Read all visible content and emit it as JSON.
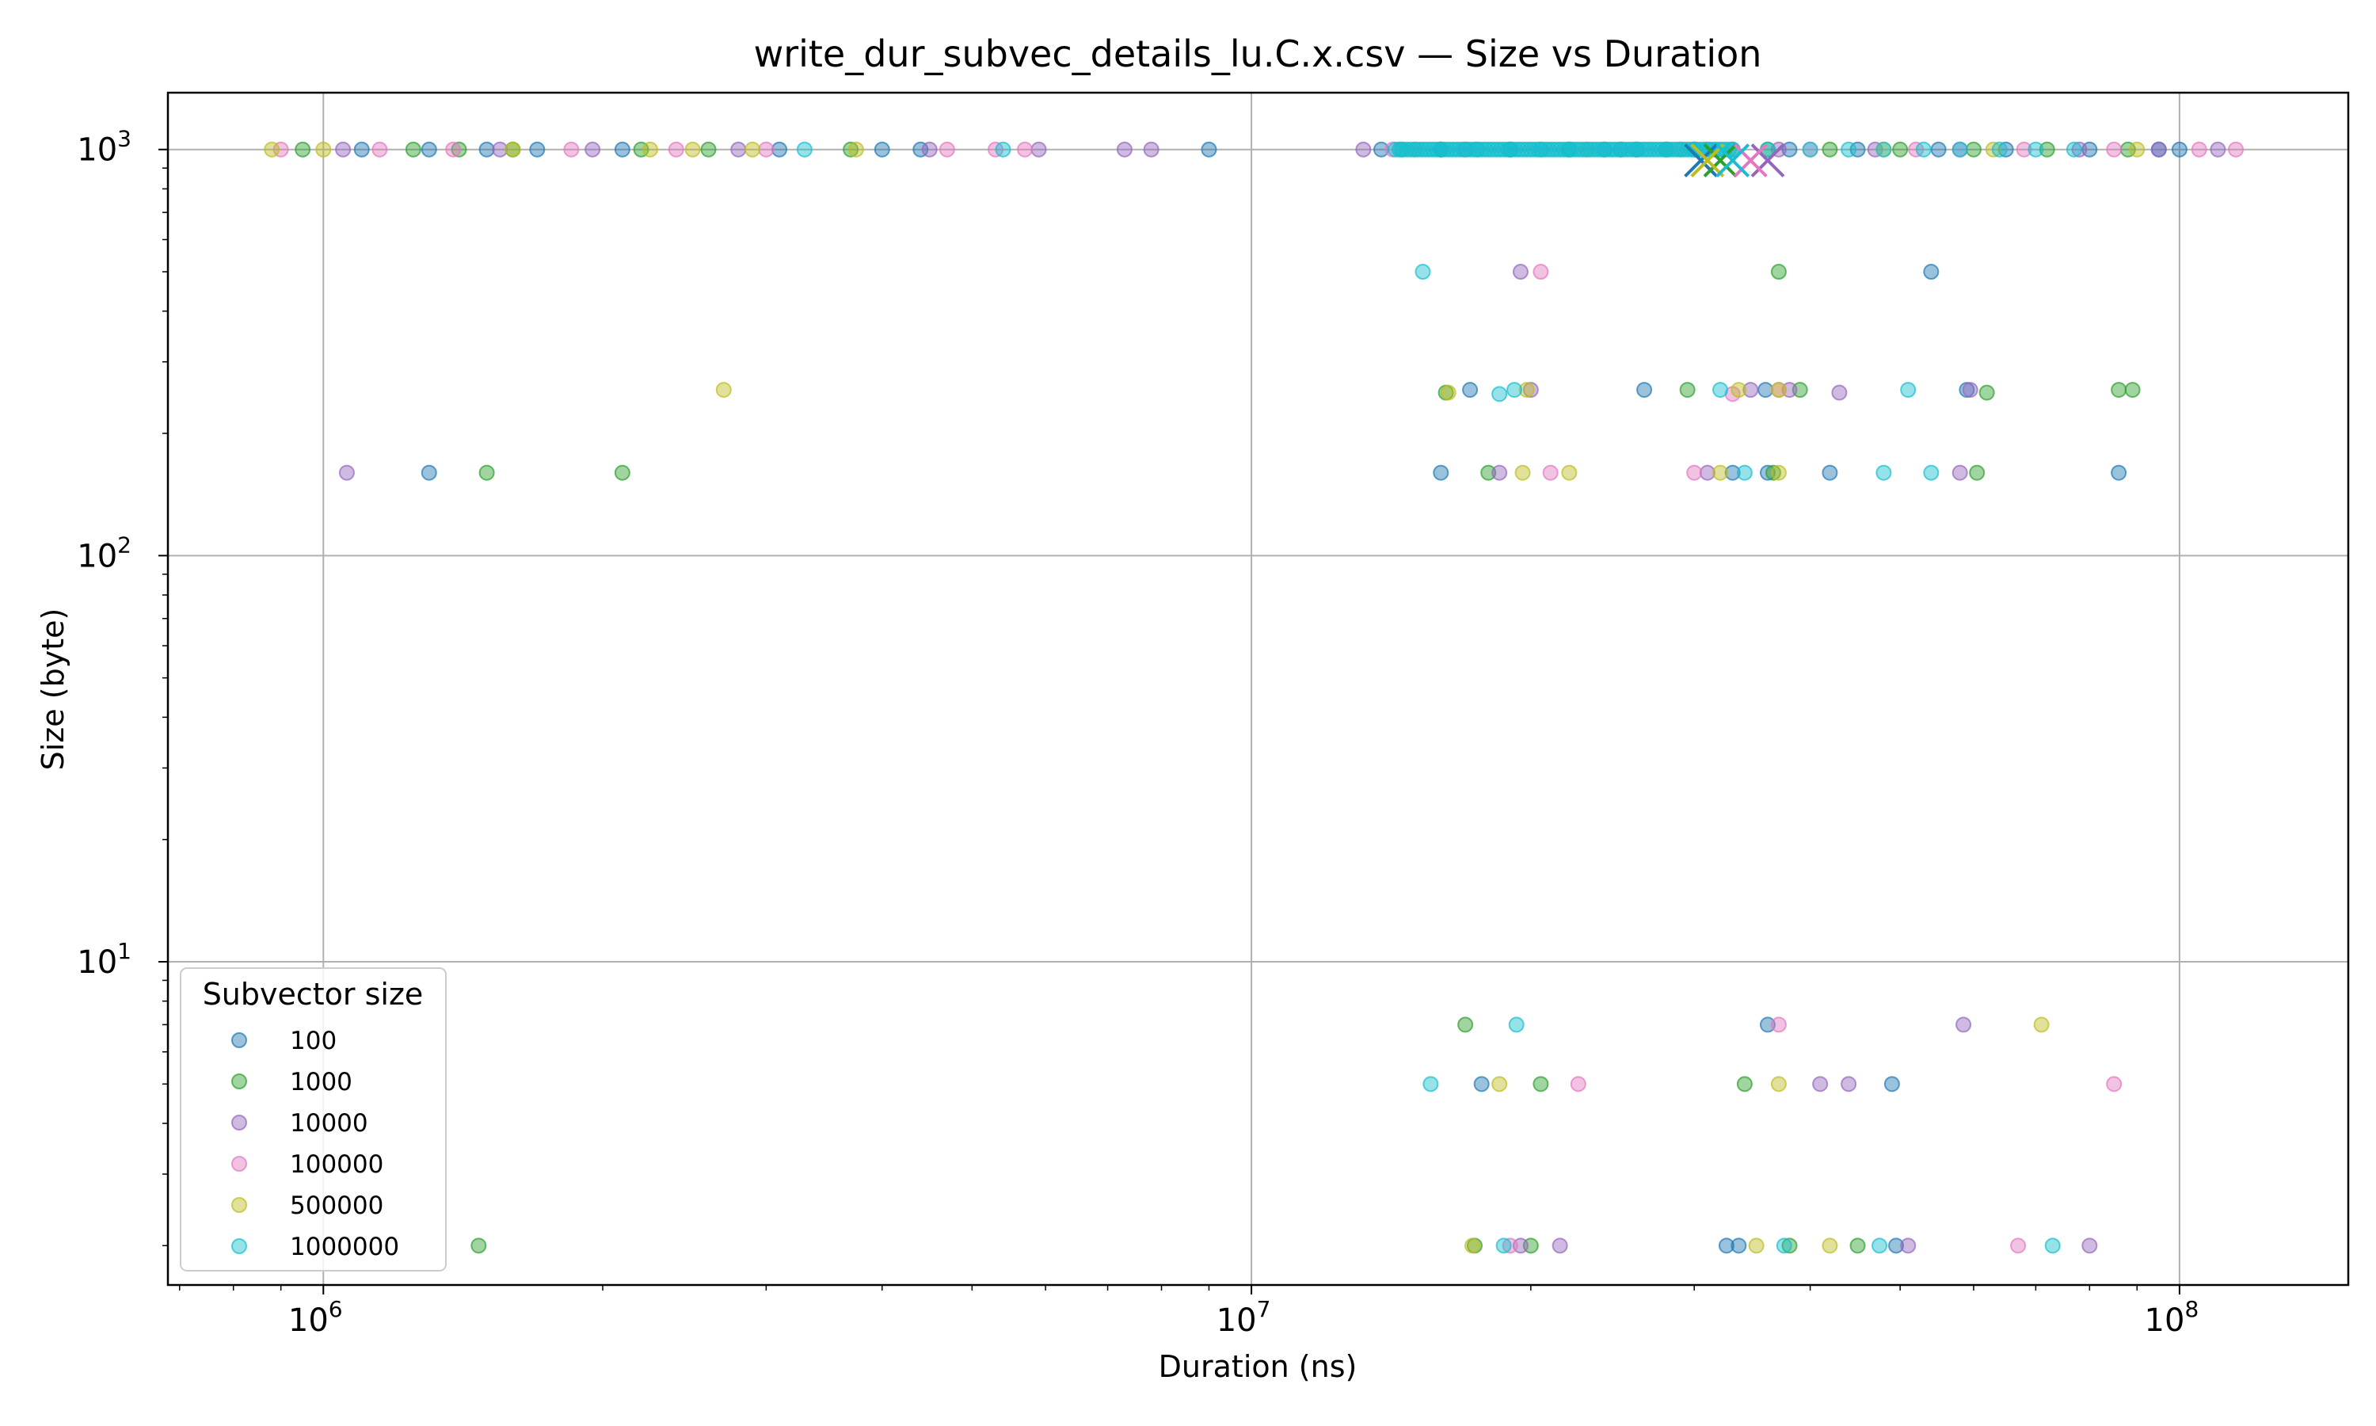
{
  "chart_data": {
    "type": "scatter",
    "title": "write_dur_subvec_details_lu.C.x.csv — Size vs Duration",
    "xlabel": "Duration (ns)",
    "ylabel": "Size (byte)",
    "xscale": "log",
    "yscale": "log",
    "xlim": [
      680000,
      152000000
    ],
    "ylim": [
      1.6,
      1380
    ],
    "grid": true,
    "x_ticks": [
      {
        "value": 1000000,
        "base": "10",
        "exp": "6"
      },
      {
        "value": 10000000,
        "base": "10",
        "exp": "7"
      },
      {
        "value": 100000000,
        "base": "10",
        "exp": "8"
      }
    ],
    "y_ticks": [
      {
        "value": 10,
        "base": "10",
        "exp": "1"
      },
      {
        "value": 100,
        "base": "10",
        "exp": "2"
      },
      {
        "value": 1000,
        "base": "10",
        "exp": "3"
      }
    ],
    "legend": {
      "title": "Subvector size",
      "position": "lower-left"
    },
    "series": [
      {
        "name": "100",
        "color": "#1f77b4",
        "points": [
          [
            1100000,
            1000
          ],
          [
            1300000,
            1000
          ],
          [
            1500000,
            1000
          ],
          [
            1700000,
            1000
          ],
          [
            2100000,
            1000
          ],
          [
            3100000,
            1000
          ],
          [
            4000000,
            1000
          ],
          [
            4400000,
            1000
          ],
          [
            9000000,
            1000
          ],
          [
            13800000,
            1000
          ],
          [
            16000000,
            1000
          ],
          [
            19000000,
            1000
          ],
          [
            25000000,
            1000
          ],
          [
            30000000,
            1000
          ],
          [
            38000000,
            1000
          ],
          [
            45000000,
            1000
          ],
          [
            55000000,
            1000
          ],
          [
            65000000,
            1000
          ],
          [
            80000000,
            1000
          ],
          [
            95000000,
            1000
          ],
          [
            100000000,
            1000
          ],
          [
            54000000,
            500
          ],
          [
            17200000,
            256
          ],
          [
            26500000,
            256
          ],
          [
            35800000,
            256
          ],
          [
            59000000,
            256
          ],
          [
            1300000,
            160
          ],
          [
            16000000,
            160
          ],
          [
            33000000,
            160
          ],
          [
            36000000,
            160
          ],
          [
            42000000,
            160
          ],
          [
            86000000,
            160
          ],
          [
            36000000,
            7
          ],
          [
            17700000,
            5
          ],
          [
            49000000,
            5
          ],
          [
            32500000,
            2
          ],
          [
            33500000,
            2
          ],
          [
            49500000,
            2
          ]
        ],
        "mean": [
          30500000,
          940
        ]
      },
      {
        "name": "1000",
        "color": "#2ca02c",
        "points": [
          [
            950000,
            1000
          ],
          [
            1250000,
            1000
          ],
          [
            1400000,
            1000
          ],
          [
            1600000,
            1000
          ],
          [
            2200000,
            1000
          ],
          [
            2600000,
            1000
          ],
          [
            3700000,
            1000
          ],
          [
            16000000,
            1000
          ],
          [
            22000000,
            1000
          ],
          [
            28000000,
            1000
          ],
          [
            36000000,
            1000
          ],
          [
            42000000,
            1000
          ],
          [
            50000000,
            1000
          ],
          [
            60000000,
            1000
          ],
          [
            72000000,
            1000
          ],
          [
            88000000,
            1000
          ],
          [
            37000000,
            500
          ],
          [
            16200000,
            252
          ],
          [
            29500000,
            256
          ],
          [
            39000000,
            256
          ],
          [
            62000000,
            252
          ],
          [
            86000000,
            256
          ],
          [
            89000000,
            256
          ],
          [
            1500000,
            160
          ],
          [
            2100000,
            160
          ],
          [
            18000000,
            160
          ],
          [
            36500000,
            160
          ],
          [
            60500000,
            160
          ],
          [
            17000000,
            7
          ],
          [
            20500000,
            5
          ],
          [
            34000000,
            5
          ],
          [
            1470000,
            2
          ],
          [
            17400000,
            2
          ],
          [
            20000000,
            2
          ],
          [
            38000000,
            2
          ],
          [
            45000000,
            2
          ]
        ],
        "mean": [
          32000000,
          940
        ]
      },
      {
        "name": "10000",
        "color": "#9467bd",
        "points": [
          [
            1050000,
            1000
          ],
          [
            1550000,
            1000
          ],
          [
            1950000,
            1000
          ],
          [
            2800000,
            1000
          ],
          [
            4500000,
            1000
          ],
          [
            5900000,
            1000
          ],
          [
            7300000,
            1000
          ],
          [
            7800000,
            1000
          ],
          [
            13200000,
            1000
          ],
          [
            17000000,
            1000
          ],
          [
            26000000,
            1000
          ],
          [
            37000000,
            1000
          ],
          [
            47000000,
            1000
          ],
          [
            58000000,
            1000
          ],
          [
            78000000,
            1000
          ],
          [
            95000000,
            1000
          ],
          [
            110000000,
            1000
          ],
          [
            19500000,
            500
          ],
          [
            20000000,
            256
          ],
          [
            34500000,
            256
          ],
          [
            38000000,
            256
          ],
          [
            43000000,
            252
          ],
          [
            59500000,
            256
          ],
          [
            1060000,
            160
          ],
          [
            18500000,
            160
          ],
          [
            31000000,
            160
          ],
          [
            58000000,
            160
          ],
          [
            58500000,
            7
          ],
          [
            41000000,
            5
          ],
          [
            44000000,
            5
          ],
          [
            21500000,
            2
          ],
          [
            51000000,
            2
          ],
          [
            80000000,
            2
          ],
          [
            19500000,
            2
          ]
        ],
        "mean": [
          36000000,
          940
        ]
      },
      {
        "name": "100000",
        "color": "#e377c2",
        "points": [
          [
            900000,
            1000
          ],
          [
            1150000,
            1000
          ],
          [
            1380000,
            1000
          ],
          [
            1850000,
            1000
          ],
          [
            2400000,
            1000
          ],
          [
            3000000,
            1000
          ],
          [
            4700000,
            1000
          ],
          [
            5300000,
            1000
          ],
          [
            5700000,
            1000
          ],
          [
            14200000,
            1000
          ],
          [
            24000000,
            1000
          ],
          [
            31000000,
            1000
          ],
          [
            40000000,
            1000
          ],
          [
            52000000,
            1000
          ],
          [
            68000000,
            1000
          ],
          [
            85000000,
            1000
          ],
          [
            105000000,
            1000
          ],
          [
            115000000,
            1000
          ],
          [
            20500000,
            500
          ],
          [
            33000000,
            250
          ],
          [
            37000000,
            256
          ],
          [
            21000000,
            160
          ],
          [
            30000000,
            160
          ],
          [
            37000000,
            7
          ],
          [
            22500000,
            5
          ],
          [
            85000000,
            5
          ],
          [
            19000000,
            2
          ],
          [
            67000000,
            2
          ]
        ],
        "mean": [
          34500000,
          940
        ]
      },
      {
        "name": "500000",
        "color": "#bcbd22",
        "points": [
          [
            880000,
            1000
          ],
          [
            1000000,
            1000
          ],
          [
            1600000,
            1000
          ],
          [
            2250000,
            1000
          ],
          [
            2500000,
            1000
          ],
          [
            2900000,
            1000
          ],
          [
            3750000,
            1000
          ],
          [
            15000000,
            1000
          ],
          [
            23000000,
            1000
          ],
          [
            29000000,
            1000
          ],
          [
            33000000,
            1000
          ],
          [
            48000000,
            1000
          ],
          [
            63000000,
            1000
          ],
          [
            90000000,
            1000
          ],
          [
            2700000,
            256
          ],
          [
            16300000,
            252
          ],
          [
            19800000,
            256
          ],
          [
            33500000,
            256
          ],
          [
            37000000,
            256
          ],
          [
            19600000,
            160
          ],
          [
            22000000,
            160
          ],
          [
            32000000,
            160
          ],
          [
            37000000,
            160
          ],
          [
            71000000,
            7
          ],
          [
            18500000,
            5
          ],
          [
            37000000,
            5
          ],
          [
            17300000,
            2
          ],
          [
            35000000,
            2
          ],
          [
            42000000,
            2
          ]
        ],
        "mean": [
          31000000,
          940
        ]
      },
      {
        "name": "1000000",
        "color": "#17becf",
        "points": [
          [
            3300000,
            1000
          ],
          [
            5400000,
            1000
          ],
          [
            14500000,
            1000
          ],
          [
            16000000,
            1000
          ],
          [
            17500000,
            1000
          ],
          [
            19000000,
            1000
          ],
          [
            20500000,
            1000
          ],
          [
            22000000,
            1000
          ],
          [
            24000000,
            1000
          ],
          [
            26000000,
            1000
          ],
          [
            28000000,
            1000
          ],
          [
            30000000,
            1000
          ],
          [
            33000000,
            1000
          ],
          [
            36000000,
            1000
          ],
          [
            40000000,
            1000
          ],
          [
            44000000,
            1000
          ],
          [
            48000000,
            1000
          ],
          [
            53000000,
            1000
          ],
          [
            58000000,
            1000
          ],
          [
            64000000,
            1000
          ],
          [
            70000000,
            1000
          ],
          [
            77000000,
            1000
          ],
          [
            15300000,
            500
          ],
          [
            18500000,
            250
          ],
          [
            19200000,
            256
          ],
          [
            32000000,
            256
          ],
          [
            51000000,
            256
          ],
          [
            34000000,
            160
          ],
          [
            48000000,
            160
          ],
          [
            54000000,
            160
          ],
          [
            19300000,
            7
          ],
          [
            15600000,
            5
          ],
          [
            18700000,
            2
          ],
          [
            37500000,
            2
          ],
          [
            47500000,
            2
          ],
          [
            73000000,
            2
          ]
        ],
        "dense_band": {
          "y": 1000,
          "x_from": 14300000,
          "x_to": 33000000
        },
        "mean": [
          33000000,
          940
        ]
      }
    ]
  }
}
